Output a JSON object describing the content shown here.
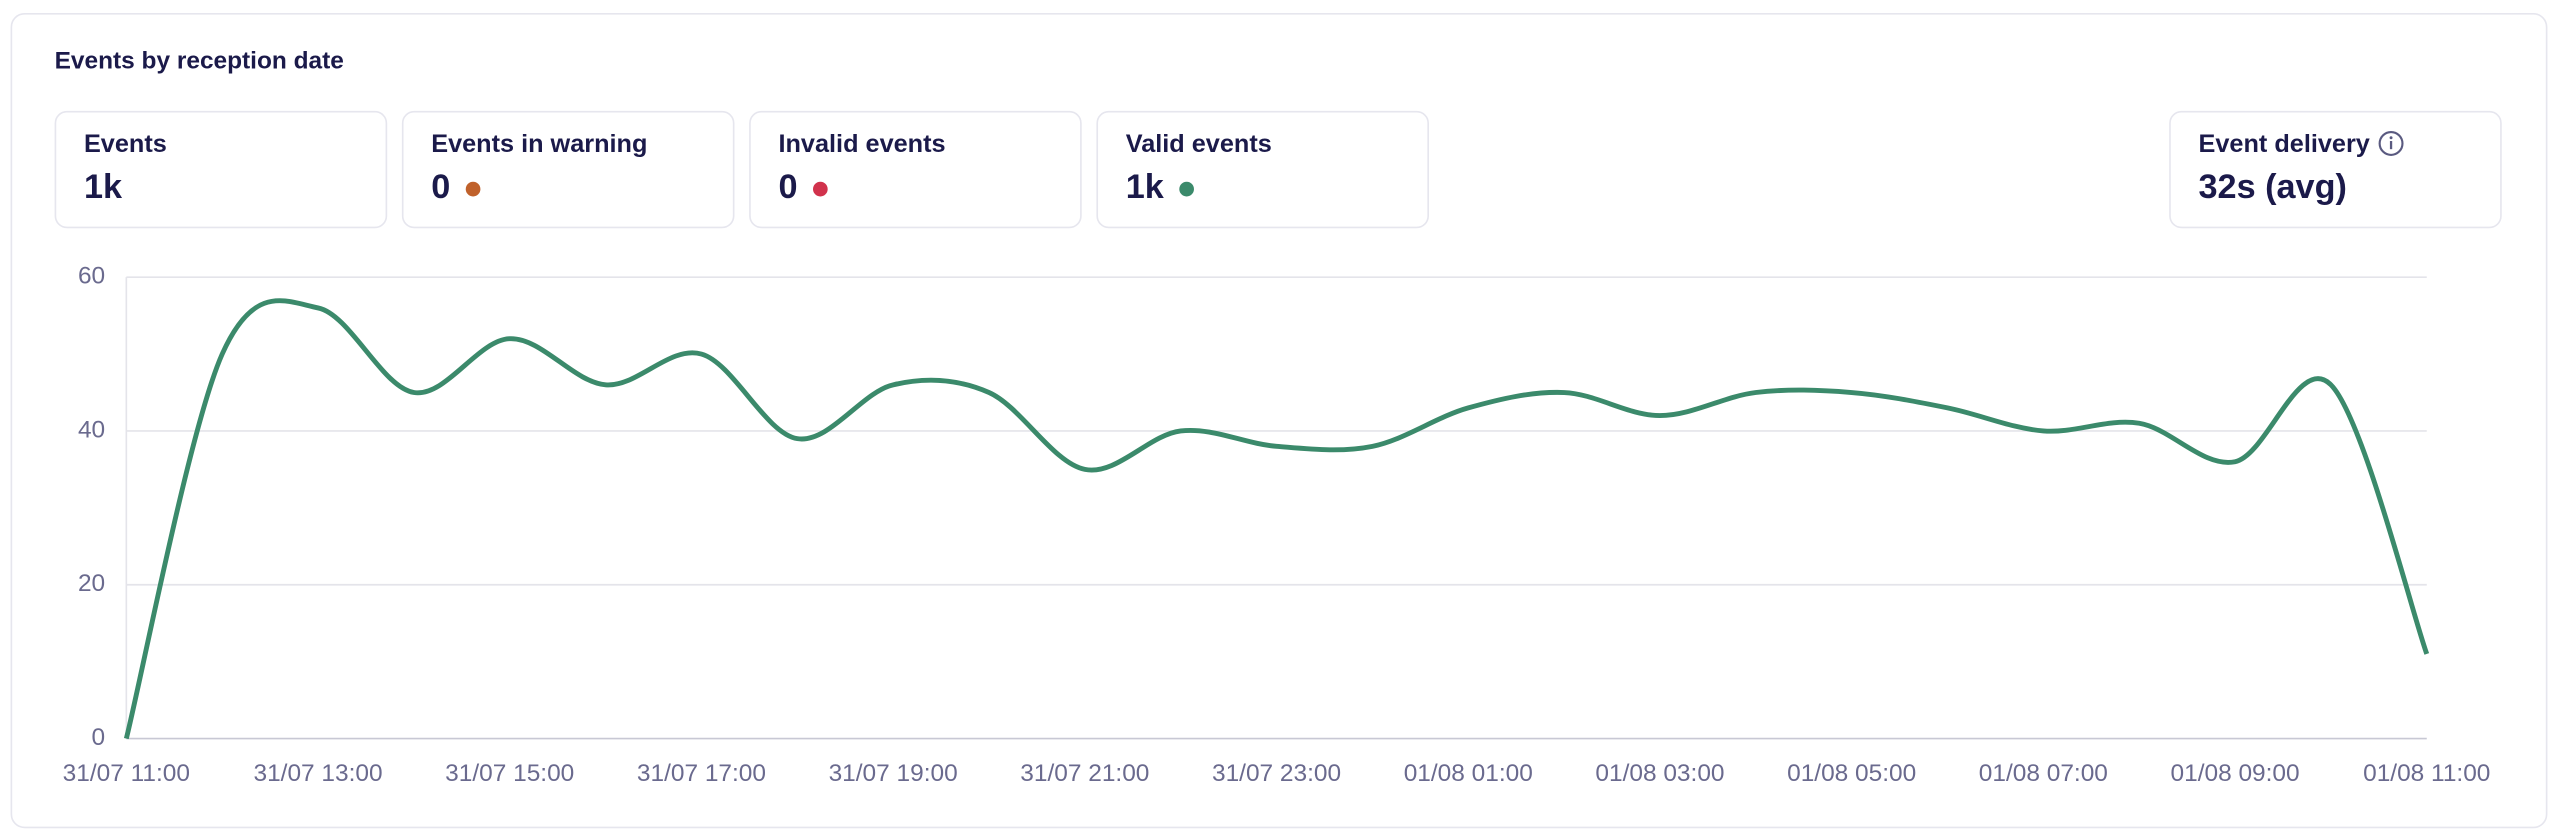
{
  "title": "Events by reception date",
  "stats": [
    {
      "label": "Events",
      "value": "1k"
    },
    {
      "label": "Events in warning",
      "value": "0",
      "color": "#c0612b"
    },
    {
      "label": "Invalid events",
      "value": "0",
      "color": "#d1324c"
    },
    {
      "label": "Valid events",
      "value": "1k",
      "color": "#3b8a6b"
    },
    {
      "label": "Event delivery",
      "value": "32s (avg)"
    }
  ],
  "chart_data": {
    "type": "line",
    "categories": [
      "31/07 11:00",
      null,
      "31/07 13:00",
      null,
      "31/07 15:00",
      null,
      "31/07 17:00",
      null,
      "31/07 19:00",
      null,
      "31/07 21:00",
      null,
      "31/07 23:00",
      null,
      "01/08 01:00",
      null,
      "01/08 03:00",
      null,
      "01/08 05:00",
      null,
      "01/08 07:00",
      null,
      "01/08 09:00",
      null,
      "01/08 11:00"
    ],
    "values": [
      0,
      50,
      56,
      45,
      52,
      46,
      50,
      39,
      46,
      45,
      35,
      40,
      38,
      38,
      43,
      45,
      42,
      45,
      45,
      43,
      40,
      41,
      36,
      46,
      11
    ],
    "color": "#3b8a6b",
    "ylim": [
      0,
      60
    ],
    "yticks": [
      0,
      20,
      40,
      60
    ],
    "grid": true
  }
}
